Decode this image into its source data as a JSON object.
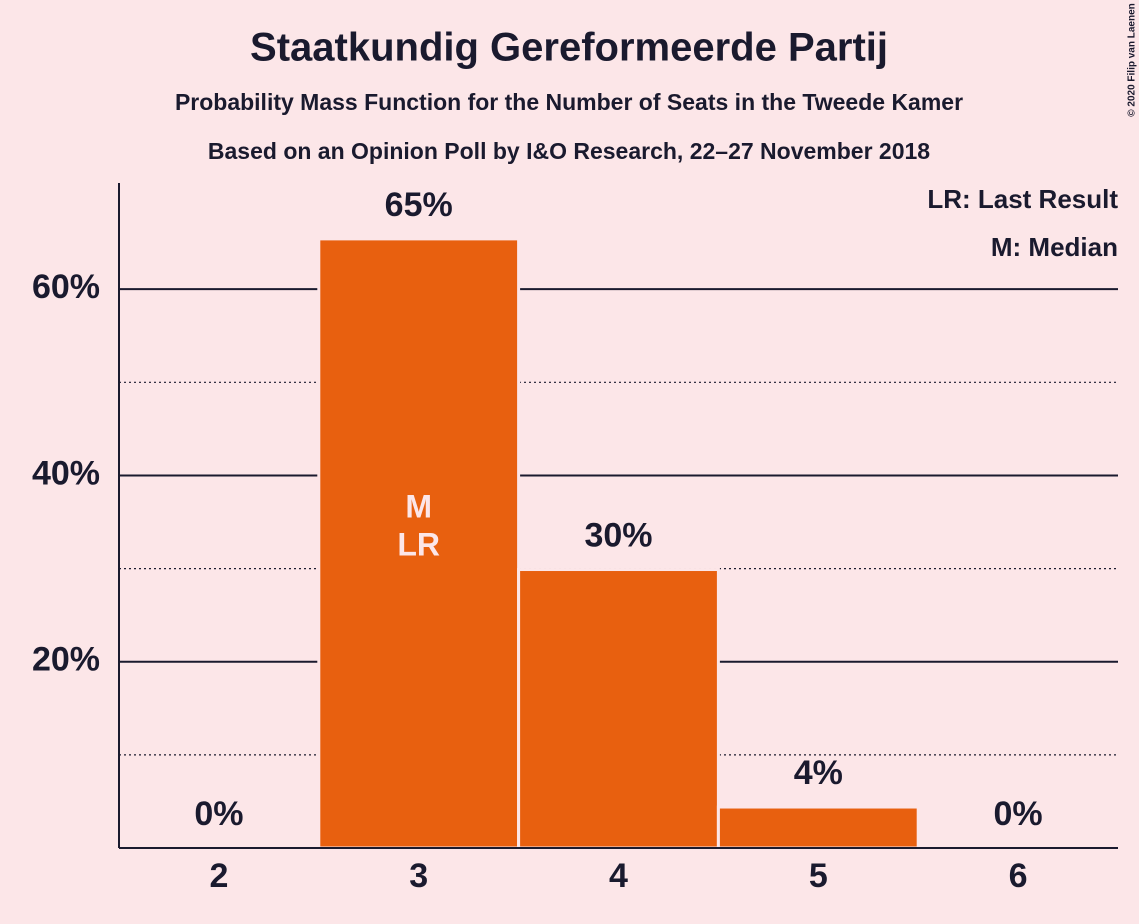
{
  "chart_data": {
    "type": "bar",
    "title": "Staatkundig Gereformeerde Partij",
    "subtitle": "Probability Mass Function for the Number of Seats in the Tweede Kamer",
    "subtitle2": "Based on an Opinion Poll by I&O Research, 22–27 November 2018",
    "categories": [
      "2",
      "3",
      "4",
      "5",
      "6"
    ],
    "values": [
      0,
      65.4,
      29.9,
      4.4,
      0
    ],
    "value_labels": [
      "0%",
      "65%",
      "30%",
      "4%",
      "0%"
    ],
    "inner_labels": [
      [],
      [
        "M",
        "LR"
      ],
      [],
      [],
      []
    ],
    "color": "#e8600f",
    "ylim": [
      0,
      71.4
    ],
    "yticks": [
      {
        "value": 20,
        "label": "20%"
      },
      {
        "value": 40,
        "label": "40%"
      },
      {
        "value": 60,
        "label": "60%"
      }
    ],
    "minor_yticks": [
      10,
      30,
      50
    ],
    "grid": true,
    "legend": [
      "LR: Last Result",
      "M: Median"
    ],
    "credit": "© 2020 Filip van Laenen"
  }
}
